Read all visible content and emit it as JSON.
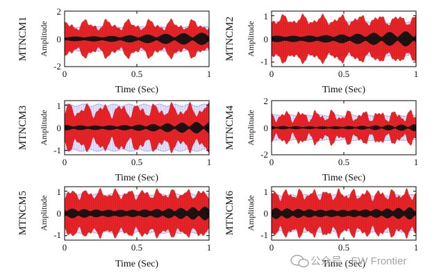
{
  "figure": {
    "watermark_text": "公众号 · EW Frontier",
    "watermark_icon": "wechat-icon"
  },
  "colors": {
    "envelope_blue": "#5a5af0",
    "signal_red": "#f01414",
    "component_black": "#111111",
    "axis": "#000000"
  },
  "chart_data": [
    {
      "id": "p1",
      "type": "line",
      "panel_label": "MTNCM1",
      "xlabel": "Time (Sec)",
      "ylabel": "Amplitude",
      "xlim": [
        0,
        1
      ],
      "ylim": [
        -2,
        2
      ],
      "xticks": [
        0,
        0.5,
        1
      ],
      "xtick_labels": [
        "0",
        "0.5",
        "1"
      ],
      "yticks": [
        -2,
        0,
        2
      ],
      "ytick_labels": [
        "-2",
        "0",
        "2"
      ],
      "series": [
        {
          "name": "envelope",
          "color": "#5a5af0",
          "amplitude": 0.9
        },
        {
          "name": "modulated signal",
          "color": "#f01414",
          "amplitude_range": [
            0.5,
            1.5
          ]
        },
        {
          "name": "inner component",
          "color": "#111111",
          "amplitude_range": [
            0.1,
            0.45
          ]
        }
      ]
    },
    {
      "id": "p2",
      "type": "line",
      "panel_label": "MTNCM2",
      "xlabel": "Time (Sec)",
      "ylabel": "Amplitude",
      "xlim": [
        0,
        1
      ],
      "ylim": [
        -1.2,
        1.2
      ],
      "xticks": [
        0,
        0.5,
        1
      ],
      "xtick_labels": [
        "0",
        "0.5",
        "1"
      ],
      "yticks": [
        -1,
        0,
        1
      ],
      "ytick_labels": [
        "-1",
        "0",
        "1"
      ],
      "series": [
        {
          "name": "envelope",
          "color": "#5a5af0",
          "amplitude": 0.75
        },
        {
          "name": "modulated signal",
          "color": "#f01414",
          "amplitude_range": [
            0.55,
            1.1
          ]
        },
        {
          "name": "inner component",
          "color": "#111111",
          "amplitude_range": [
            0.08,
            0.35
          ]
        }
      ]
    },
    {
      "id": "p3",
      "type": "line",
      "panel_label": "MTNCM3",
      "xlabel": "Time (Sec)",
      "ylabel": "Amplitude",
      "xlim": [
        0,
        1
      ],
      "ylim": [
        -1.2,
        1.2
      ],
      "xticks": [
        0,
        0.5,
        1
      ],
      "xtick_labels": [
        "0",
        "0.5",
        "1"
      ],
      "yticks": [
        -1,
        0,
        1
      ],
      "ytick_labels": [
        "-1",
        "0",
        "1"
      ],
      "series": [
        {
          "name": "envelope",
          "color": "#5a5af0",
          "amplitude": 1.05
        },
        {
          "name": "modulated signal",
          "color": "#f01414",
          "amplitude_range": [
            0.4,
            1.15
          ]
        },
        {
          "name": "inner component",
          "color": "#111111",
          "amplitude_range": [
            0.05,
            0.3
          ]
        }
      ]
    },
    {
      "id": "p4",
      "type": "line",
      "panel_label": "MTNCM4",
      "xlabel": "Time (Sec)",
      "ylabel": "Amplitude",
      "xlim": [
        0,
        1
      ],
      "ylim": [
        -2,
        2
      ],
      "xticks": [
        0,
        0.5,
        1
      ],
      "xtick_labels": [
        "0",
        "0.5",
        "1"
      ],
      "yticks": [
        -2,
        0,
        2
      ],
      "ytick_labels": [
        "-2",
        "0",
        "2"
      ],
      "series": [
        {
          "name": "envelope",
          "color": "#5a5af0",
          "amplitude": 0.95
        },
        {
          "name": "modulated signal",
          "color": "#f01414",
          "amplitude_range": [
            0.35,
            1.4
          ]
        },
        {
          "name": "inner component",
          "color": "#111111",
          "amplitude_range": [
            0.05,
            0.3
          ]
        }
      ]
    },
    {
      "id": "p5",
      "type": "line",
      "panel_label": "MTNCM5",
      "xlabel": "Time (Sec)",
      "ylabel": "Amplitude",
      "xlim": [
        0,
        1
      ],
      "ylim": [
        -1.2,
        1.2
      ],
      "xticks": [
        0,
        0.5,
        1
      ],
      "xtick_labels": [
        "0",
        "0.5",
        "1"
      ],
      "yticks": [
        -1,
        0,
        1
      ],
      "ytick_labels": [
        "-1",
        "0",
        "1"
      ],
      "series": [
        {
          "name": "envelope",
          "color": "#5a5af0",
          "amplitude": 0.9
        },
        {
          "name": "modulated signal",
          "color": "#f01414",
          "amplitude_range": [
            0.6,
            1.15
          ]
        },
        {
          "name": "inner component",
          "color": "#111111",
          "amplitude_range": [
            0.1,
            0.4
          ]
        }
      ]
    },
    {
      "id": "p6",
      "type": "line",
      "panel_label": "MTNCM6",
      "xlabel": "Time (Sec)",
      "ylabel": "Amplitude",
      "xlim": [
        0,
        1
      ],
      "ylim": [
        -1.2,
        1.2
      ],
      "xticks": [
        0,
        0.5,
        1
      ],
      "xtick_labels": [
        "0",
        "0.5",
        "1"
      ],
      "yticks": [
        -1,
        0,
        1
      ],
      "ytick_labels": [
        "-1",
        "0",
        "1"
      ],
      "series": [
        {
          "name": "envelope",
          "color": "#5a5af0",
          "amplitude": 0.85
        },
        {
          "name": "modulated signal",
          "color": "#f01414",
          "amplitude_range": [
            0.55,
            1.15
          ]
        },
        {
          "name": "inner component",
          "color": "#111111",
          "amplitude_range": [
            0.1,
            0.4
          ]
        }
      ]
    }
  ]
}
